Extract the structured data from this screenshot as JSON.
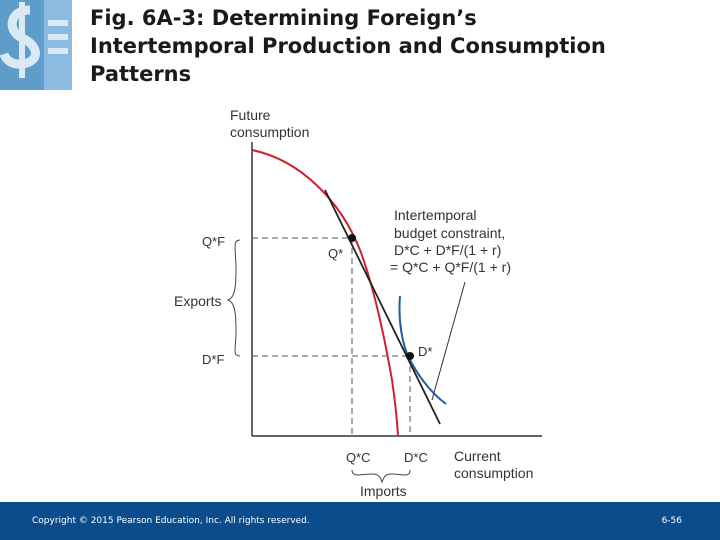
{
  "slide": {
    "title_lines": [
      "Fig. 6A-3: Determining Foreign’s",
      "Intertemporal Production and Consumption",
      "Patterns"
    ]
  },
  "diagram": {
    "y_axis_label": [
      "Future",
      "consumption"
    ],
    "x_axis_label": [
      "Current",
      "consumption"
    ],
    "point_q_label": "Q*",
    "point_d_label": "D*",
    "qf_label": "Q*F",
    "df_label": "D*F",
    "qc_label": "Q*C",
    "dc_label": "D*C",
    "exports_label": "Exports",
    "imports_label": "Imports",
    "budget_constraint_line1": "Intertemporal",
    "budget_constraint_line2": "budget constraint,",
    "budget_constraint_eq1": "D*C + D*F/(1 + r)",
    "budget_constraint_eq2": "= Q*C + Q*F/(1 + r)",
    "colors": {
      "ppf_curve": "#d0202e",
      "indifference_curve": "#1f5fa0",
      "budget_line": "#222222",
      "axes": "#333333"
    }
  },
  "footer": {
    "copyright": "Copyright © 2015 Pearson Education, Inc. All rights reserved.",
    "slide_number": "6-56"
  }
}
